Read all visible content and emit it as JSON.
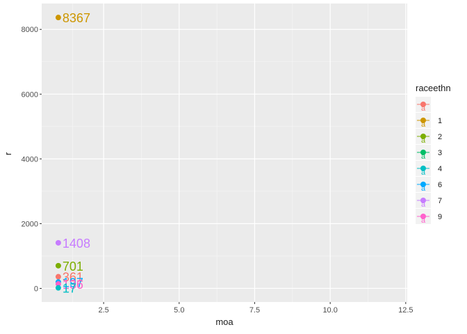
{
  "chart_data": {
    "type": "scatter",
    "title": "",
    "xlabel": "moa",
    "ylabel": "r",
    "xlim": [
      0.45,
      12.55
    ],
    "ylim": [
      -420,
      8800
    ],
    "x_ticks": [
      2.5,
      5.0,
      7.5,
      10.0,
      12.5
    ],
    "x_tick_labels": [
      "2.5",
      "5.0",
      "7.5",
      "10.0",
      "12.5"
    ],
    "y_ticks": [
      0,
      2000,
      4000,
      6000,
      8000
    ],
    "y_tick_labels": [
      "0",
      "2000",
      "4000",
      "6000",
      "8000"
    ],
    "grid": true,
    "legend": {
      "title": "raceethn",
      "position": "right",
      "entries": [
        {
          "label": "",
          "color": "#F8766D"
        },
        {
          "label": "1",
          "color": "#CD9600"
        },
        {
          "label": "2",
          "color": "#7CAE00"
        },
        {
          "label": "3",
          "color": "#00BE67"
        },
        {
          "label": "4",
          "color": "#00BFC4"
        },
        {
          "label": "6",
          "color": "#00A9FF"
        },
        {
          "label": "7",
          "color": "#C77CFF"
        },
        {
          "label": "9",
          "color": "#FF61CC"
        }
      ]
    },
    "points": [
      {
        "group": "1",
        "x": 1,
        "y": 8367,
        "label": "8367",
        "color": "#CD9600"
      },
      {
        "group": "7",
        "x": 1,
        "y": 1408,
        "label": "1408",
        "color": "#C77CFF"
      },
      {
        "group": "2",
        "x": 1,
        "y": 701,
        "label": "701",
        "color": "#7CAE00"
      },
      {
        "group": "",
        "x": 1,
        "y": 361,
        "label": "361",
        "color": "#F8766D"
      },
      {
        "group": "6",
        "x": 1,
        "y": 197,
        "label": "197",
        "color": "#00A9FF"
      },
      {
        "group": "9",
        "x": 1,
        "y": 136,
        "label": "136",
        "color": "#FF61CC"
      },
      {
        "group": "4",
        "x": 1,
        "y": 17,
        "label": "17",
        "color": "#00BFC4"
      }
    ]
  }
}
